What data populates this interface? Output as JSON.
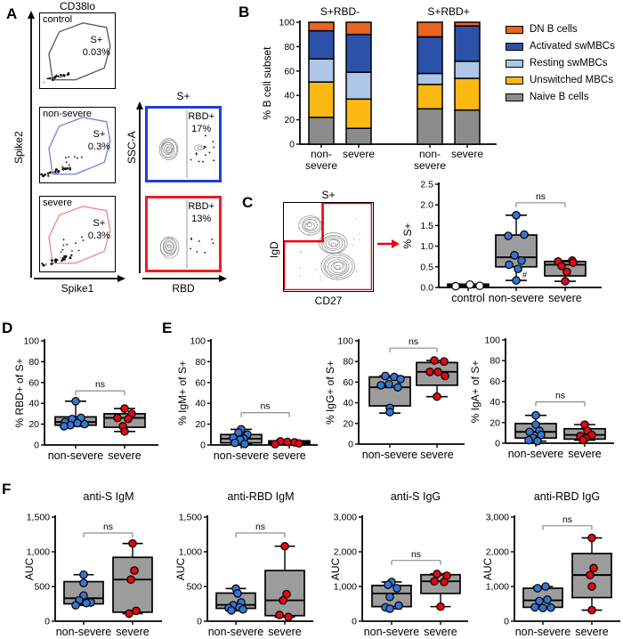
{
  "panels": {
    "A": "A",
    "B": "B",
    "C": "C",
    "D": "D",
    "E": "E",
    "F": "F"
  },
  "panelA": {
    "column_title": "CD38lo",
    "xlabel": "Spike1",
    "ylabel": "Spike2",
    "plots": [
      {
        "name": "control",
        "gate": "S+",
        "pct": "0.03%"
      },
      {
        "name": "non-severe",
        "gate": "S+",
        "pct": "0.3%"
      },
      {
        "name": "severe",
        "gate": "S+",
        "pct": "0.3%"
      }
    ],
    "rbd": {
      "title": "S+",
      "xlabel": "RBD",
      "ylabel": "SSC-A",
      "plots": [
        {
          "gate": "RBD+",
          "pct": "17%"
        },
        {
          "gate": "RBD+",
          "pct": "13%"
        }
      ]
    }
  },
  "panelC_flow": {
    "title": "S+",
    "xlabel": "CD27",
    "ylabel": "IgD"
  },
  "colors": {
    "non_severe": "#3575d4",
    "severe": "#e30613",
    "control": "#ffffff",
    "box_fill": "#9c9c9c",
    "blue_gate": "#1f3fd8",
    "red_gate": "#ed1c24",
    "sig": "#808080"
  },
  "chart_data": [
    {
      "id": "B",
      "type": "bar",
      "stacked": true,
      "group_titles": [
        "S+RBD-",
        "S+RBD+"
      ],
      "categories": [
        "non-\nsevere",
        "severe",
        "non-\nsevere",
        "severe"
      ],
      "series": [
        {
          "name": "Naive B cells",
          "color": "#8c8c8c",
          "values": [
            22,
            13,
            29,
            28
          ]
        },
        {
          "name": "Unswitched MBCs",
          "color": "#fdb913",
          "values": [
            29,
            24,
            20,
            26
          ]
        },
        {
          "name": "Resting swMBCs",
          "color": "#aec6e8",
          "values": [
            19,
            22,
            9,
            14
          ]
        },
        {
          "name": "Activated swMBCs",
          "color": "#2b52a8",
          "values": [
            23,
            31,
            30,
            29
          ]
        },
        {
          "name": "DN B cells",
          "color": "#e8641f",
          "values": [
            7,
            10,
            12,
            3
          ]
        }
      ],
      "legend_order": [
        "DN B cells",
        "Activated swMBCs",
        "Resting swMBCs",
        "Unswitched MBCs",
        "Naive B cells"
      ],
      "ylabel": "% B cell subset",
      "ylim": [
        0,
        100
      ],
      "yticks": [
        0,
        20,
        40,
        60,
        80,
        100
      ],
      "legend_position": "right"
    },
    {
      "id": "C",
      "type": "box",
      "ylabel": "% S+",
      "ylim": [
        0,
        2.5
      ],
      "yticks": [
        "0.0",
        "0.5",
        "1.0",
        "1.5",
        "2.0",
        "2.5"
      ],
      "categories": [
        "control",
        "non-severe",
        "severe"
      ],
      "boxes": [
        {
          "group": "control",
          "color_key": "control",
          "q1": 0.02,
          "median": 0.05,
          "q3": 0.08,
          "lo": 0.02,
          "hi": 0.08,
          "points": [
            0.03,
            0.07,
            0.04
          ],
          "jitter": [
            -14,
            2,
            13
          ]
        },
        {
          "group": "non-severe",
          "color_key": "non_severe",
          "q1": 0.5,
          "median": 0.73,
          "q3": 1.27,
          "lo": 0.17,
          "hi": 1.75,
          "points": [
            1.75,
            1.25,
            1.28,
            0.78,
            0.65,
            0.55,
            0.45,
            0.17
          ],
          "jitter": [
            0,
            -9,
            9,
            -2,
            6,
            -8,
            2,
            0
          ]
        },
        {
          "group": "severe",
          "color_key": "severe",
          "q1": 0.28,
          "median": 0.55,
          "q3": 0.63,
          "lo": 0.15,
          "hi": 0.65,
          "points": [
            0.63,
            0.65,
            0.52,
            0.6,
            0.38,
            0.15
          ],
          "jitter": [
            -8,
            8,
            -4,
            9,
            2,
            0
          ]
        }
      ],
      "sig": {
        "label": "ns",
        "from": 1,
        "to": 2,
        "y": 2.05
      },
      "annotation": {
        "text": "#",
        "box": 1,
        "value": 0.3,
        "dx": 7
      }
    },
    {
      "id": "D",
      "type": "box",
      "ylabel": "% RBD+ of S+",
      "ylim": [
        0,
        100
      ],
      "yticks": [
        0,
        20,
        40,
        60,
        80,
        100
      ],
      "categories": [
        "non-severe",
        "severe"
      ],
      "boxes": [
        {
          "group": "non-severe",
          "color_key": "non_severe",
          "q1": 19,
          "median": 22,
          "q3": 27,
          "lo": 18,
          "hi": 42,
          "points": [
            42,
            26,
            25,
            22,
            21,
            20,
            19,
            18
          ],
          "jitter": [
            0,
            6,
            -4,
            -12,
            2,
            10,
            -6,
            -13
          ]
        },
        {
          "group": "severe",
          "color_key": "severe",
          "q1": 17,
          "median": 26,
          "q3": 30,
          "lo": 13,
          "hi": 35,
          "points": [
            35,
            30,
            26,
            25,
            18,
            13
          ],
          "jitter": [
            0,
            8,
            -8,
            4,
            -2,
            0
          ]
        }
      ],
      "sig": {
        "label": "ns",
        "from": 0,
        "to": 1,
        "y": 52
      }
    },
    {
      "id": "E1",
      "type": "box",
      "ylabel": "% IgM+ of S+",
      "ylim": [
        0,
        100
      ],
      "yticks": [
        0,
        20,
        40,
        60,
        80,
        100
      ],
      "categories": [
        "non-severe",
        "severe"
      ],
      "boxes": [
        {
          "group": "non-severe",
          "color_key": "non_severe",
          "q1": 2,
          "median": 6,
          "q3": 10,
          "lo": 1,
          "hi": 15,
          "points": [
            15,
            12,
            10,
            7,
            6,
            5,
            2,
            1
          ],
          "jitter": [
            0,
            -3,
            7,
            -9,
            3,
            -1,
            -7,
            4
          ]
        },
        {
          "group": "severe",
          "color_key": "severe",
          "q1": 1,
          "median": 2.5,
          "q3": 4,
          "lo": 0.5,
          "hi": 4,
          "points": [
            3.5,
            3,
            2.5,
            1.5,
            0.8
          ],
          "jitter": [
            -10,
            -2,
            6,
            11,
            -16
          ]
        }
      ],
      "sig": {
        "label": "ns",
        "from": 0,
        "to": 1,
        "y": 31
      }
    },
    {
      "id": "E2",
      "type": "box",
      "ylabel": "% IgG+ of S+",
      "ylim": [
        0,
        100
      ],
      "yticks": [
        0,
        20,
        40,
        60,
        80,
        100
      ],
      "categories": [
        "non-severe",
        "severe"
      ],
      "boxes": [
        {
          "group": "non-severe",
          "color_key": "non_severe",
          "q1": 37,
          "median": 55,
          "q3": 65,
          "lo": 30,
          "hi": 66,
          "points": [
            66,
            65,
            63,
            58,
            57,
            55,
            35,
            31
          ],
          "jitter": [
            -5,
            5,
            12,
            -1,
            -10,
            9,
            0,
            0
          ]
        },
        {
          "group": "severe",
          "color_key": "severe",
          "q1": 57,
          "median": 70,
          "q3": 79,
          "lo": 46,
          "hi": 81,
          "points": [
            81,
            80,
            70,
            70,
            66,
            46
          ],
          "jitter": [
            -3,
            8,
            -8,
            1,
            9,
            0
          ]
        }
      ],
      "sig": {
        "label": "ns",
        "from": 0,
        "to": 1,
        "y": 93
      }
    },
    {
      "id": "E3",
      "type": "box",
      "ylabel": "% IgA+ of S+",
      "ylim": [
        0,
        100
      ],
      "yticks": [
        0,
        20,
        40,
        60,
        80,
        100
      ],
      "categories": [
        "non-severe",
        "severe"
      ],
      "boxes": [
        {
          "group": "non-severe",
          "color_key": "non_severe",
          "q1": 5,
          "median": 11,
          "q3": 19,
          "lo": 2,
          "hi": 27,
          "points": [
            27,
            18,
            12,
            11,
            8,
            5,
            3,
            2
          ],
          "jitter": [
            0,
            0,
            4,
            -7,
            6,
            -3,
            -8,
            2
          ]
        },
        {
          "group": "severe",
          "color_key": "severe",
          "q1": 4,
          "median": 8,
          "q3": 14,
          "lo": 3,
          "hi": 18,
          "points": [
            18,
            12,
            8,
            7,
            5,
            3
          ],
          "jitter": [
            0,
            3,
            8,
            -5,
            1,
            -2
          ]
        }
      ],
      "sig": {
        "label": "ns",
        "from": 0,
        "to": 1,
        "y": 40
      }
    },
    {
      "id": "F1",
      "type": "box",
      "title": "anti-S IgM",
      "ylabel": "AUC",
      "ylim": [
        0,
        1500
      ],
      "yticks": [
        "0",
        "500",
        "1,000",
        "1,500"
      ],
      "categories": [
        "non-severe",
        "severe"
      ],
      "boxes": [
        {
          "group": "non-severe",
          "color_key": "non_severe",
          "q1": 250,
          "median": 330,
          "q3": 570,
          "lo": 230,
          "hi": 670,
          "points": [
            670,
            550,
            370,
            300,
            270,
            260,
            230
          ],
          "jitter": [
            0,
            0,
            0,
            -5,
            8,
            3,
            -9
          ]
        },
        {
          "group": "severe",
          "color_key": "severe",
          "q1": 130,
          "median": 600,
          "q3": 920,
          "lo": 110,
          "hi": 1120,
          "points": [
            1120,
            730,
            600,
            150,
            110
          ],
          "jitter": [
            0,
            2,
            -2,
            4,
            -4
          ]
        }
      ],
      "sig": {
        "label": "ns",
        "from": 0,
        "to": 1,
        "y": 1270
      }
    },
    {
      "id": "F2",
      "type": "box",
      "title": "anti-RBD IgM",
      "ylabel": "AUC",
      "ylim": [
        0,
        1500
      ],
      "yticks": [
        "0",
        "500",
        "1,000",
        "1,500"
      ],
      "categories": [
        "non-severe",
        "severe"
      ],
      "boxes": [
        {
          "group": "non-severe",
          "color_key": "non_severe",
          "q1": 185,
          "median": 235,
          "q3": 405,
          "lo": 150,
          "hi": 470,
          "points": [
            470,
            400,
            270,
            230,
            200,
            190,
            170,
            155
          ],
          "jitter": [
            0,
            2,
            6,
            -3,
            4,
            -8,
            8,
            -5
          ]
        },
        {
          "group": "severe",
          "color_key": "severe",
          "q1": 80,
          "median": 300,
          "q3": 730,
          "lo": 60,
          "hi": 1080,
          "points": [
            1080,
            390,
            300,
            90,
            60
          ],
          "jitter": [
            0,
            2,
            -2,
            -6,
            4
          ]
        }
      ],
      "sig": {
        "label": "ns",
        "from": 0,
        "to": 1,
        "y": 1270
      }
    },
    {
      "id": "F3",
      "type": "box",
      "title": "anti-S IgG",
      "ylabel": "AUC",
      "ylim": [
        0,
        3000
      ],
      "yticks": [
        "0",
        "1,000",
        "2,000",
        "3,000"
      ],
      "categories": [
        "non-severe",
        "severe"
      ],
      "boxes": [
        {
          "group": "non-severe",
          "color_key": "non_severe",
          "q1": 420,
          "median": 800,
          "q3": 1030,
          "lo": 360,
          "hi": 1130,
          "points": [
            1130,
            1050,
            950,
            700,
            450,
            400,
            360
          ],
          "jitter": [
            0,
            -4,
            6,
            -2,
            8,
            -7,
            -2
          ]
        },
        {
          "group": "severe",
          "color_key": "severe",
          "q1": 800,
          "median": 1150,
          "q3": 1340,
          "lo": 420,
          "hi": 1360,
          "points": [
            1360,
            1310,
            1150,
            1130,
            420
          ],
          "jitter": [
            -4,
            7,
            -7,
            4,
            0
          ]
        }
      ],
      "sig": {
        "label": "ns",
        "from": 0,
        "to": 1,
        "y": 1750
      }
    },
    {
      "id": "F4",
      "type": "box",
      "title": "anti-RBD IgG",
      "ylabel": "AUC",
      "ylim": [
        0,
        3000
      ],
      "yticks": [
        "0",
        "1,000",
        "2,000",
        "3,000"
      ],
      "categories": [
        "non-severe",
        "severe"
      ],
      "boxes": [
        {
          "group": "non-severe",
          "color_key": "non_severe",
          "q1": 400,
          "median": 600,
          "q3": 950,
          "lo": 380,
          "hi": 1000,
          "points": [
            1000,
            950,
            620,
            580,
            400,
            390,
            380
          ],
          "jitter": [
            3,
            -6,
            5,
            -4,
            -9,
            9,
            0
          ]
        },
        {
          "group": "severe",
          "color_key": "severe",
          "q1": 680,
          "median": 1330,
          "q3": 1950,
          "lo": 320,
          "hi": 2400,
          "points": [
            2400,
            1530,
            1330,
            1000,
            320
          ],
          "jitter": [
            0,
            2,
            -2,
            0,
            0
          ]
        }
      ],
      "sig": {
        "label": "ns",
        "from": 0,
        "to": 1,
        "y": 2750
      }
    }
  ]
}
